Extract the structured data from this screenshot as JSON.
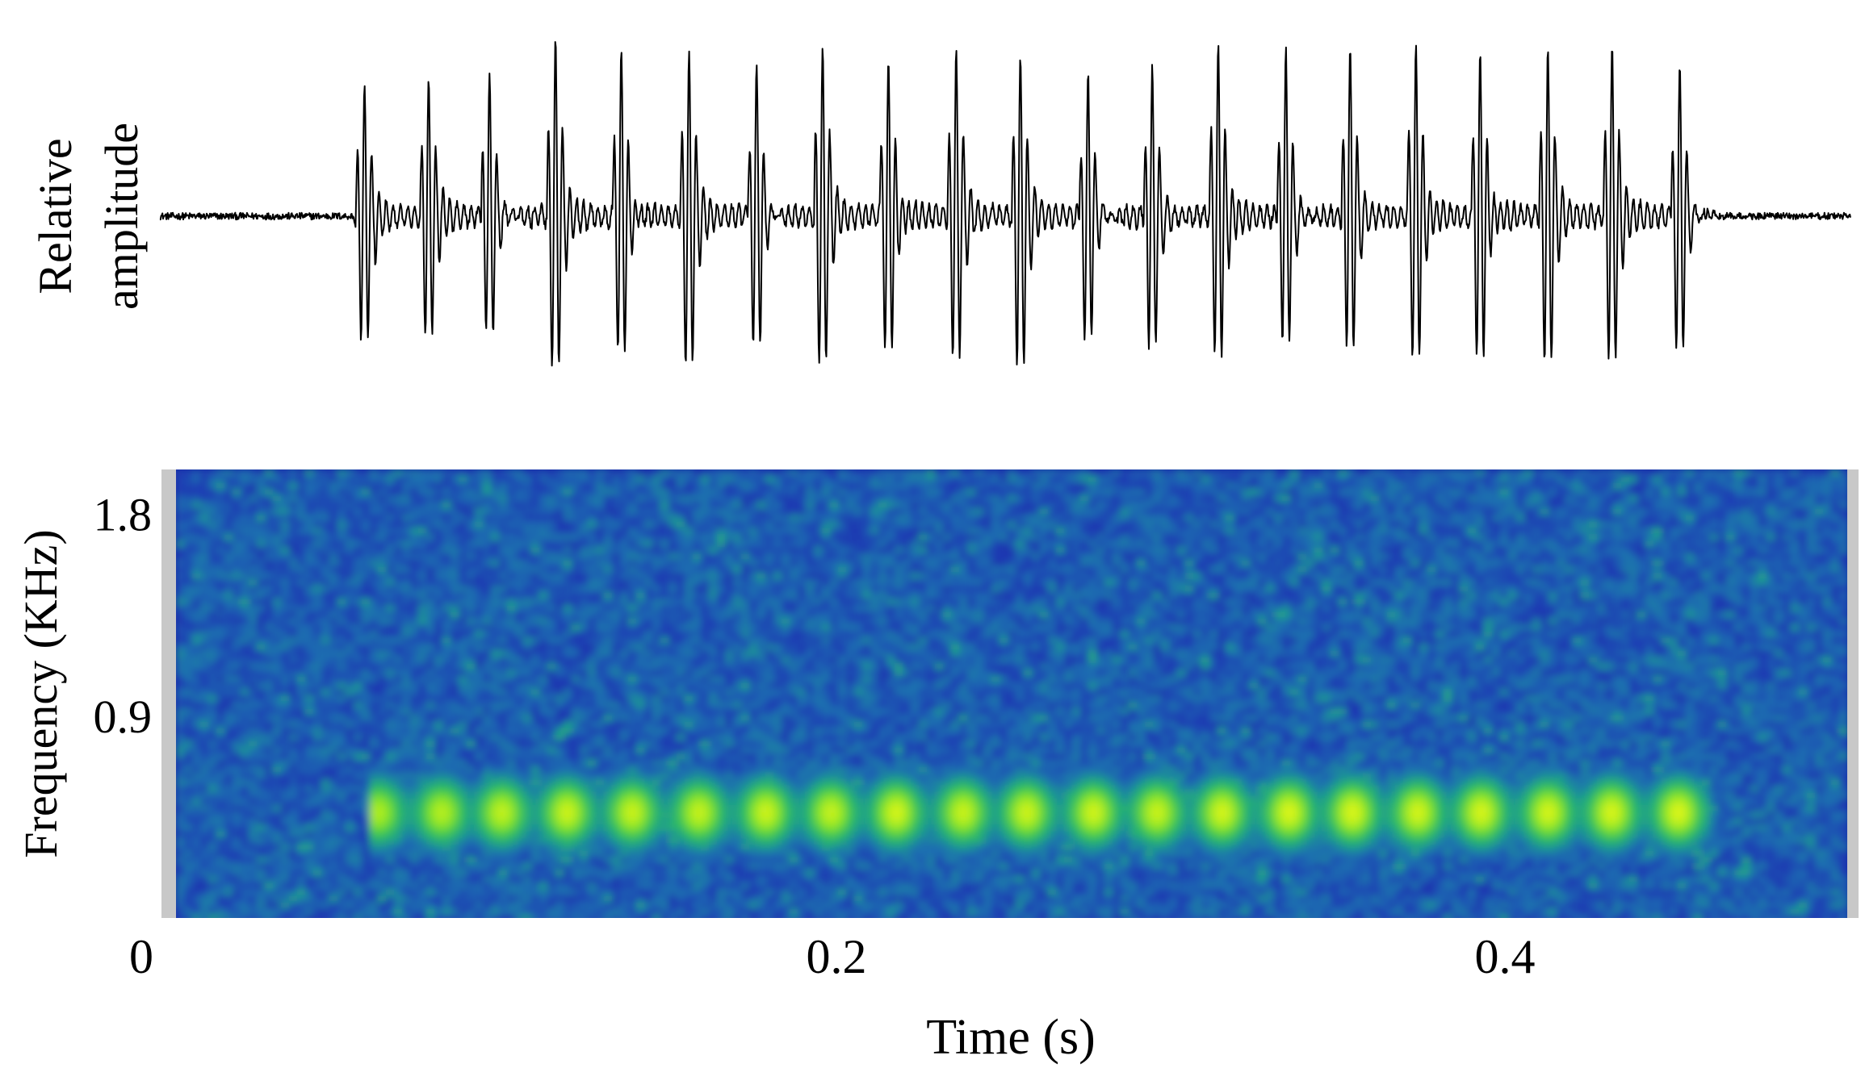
{
  "chart_data": [
    {
      "type": "line",
      "panel": "waveform",
      "ylabel_lines": [
        "Relative",
        "amplitude"
      ],
      "xlim": [
        0,
        0.5
      ],
      "x_unit": "s",
      "ylim": [
        -1,
        1
      ],
      "line_color": "#000000",
      "background_noise_level": 0.02,
      "pulses": [
        {
          "t": 0.0605,
          "amplitude": 0.78,
          "peak": 0.72,
          "trough": -0.82
        },
        {
          "t": 0.0795,
          "amplitude": 0.77,
          "peak": 0.73,
          "trough": -0.77
        },
        {
          "t": 0.0975,
          "amplitude": 0.88,
          "peak": 0.88,
          "trough": -0.87
        },
        {
          "t": 0.117,
          "amplitude": 0.97,
          "peak": 0.97,
          "trough": -0.97
        },
        {
          "t": 0.1365,
          "amplitude": 1.0,
          "peak": 1.0,
          "trough": -0.97
        },
        {
          "t": 0.1565,
          "amplitude": 0.91,
          "peak": 0.91,
          "trough": -0.97
        },
        {
          "t": 0.1765,
          "amplitude": 0.93,
          "peak": 0.94,
          "trough": -0.97
        },
        {
          "t": 0.196,
          "amplitude": 0.95,
          "peak": 0.95,
          "trough": -0.97
        },
        {
          "t": 0.2155,
          "amplitude": 0.92,
          "peak": 0.91,
          "trough": -0.92
        },
        {
          "t": 0.2355,
          "amplitude": 0.94,
          "peak": 0.95,
          "trough": -0.95
        },
        {
          "t": 0.2545,
          "amplitude": 0.87,
          "peak": 0.86,
          "trough": -0.97
        },
        {
          "t": 0.2745,
          "amplitude": 0.88,
          "peak": 0.88,
          "trough": -0.91
        },
        {
          "t": 0.2935,
          "amplitude": 0.9,
          "peak": 0.9,
          "trough": -0.92
        },
        {
          "t": 0.313,
          "amplitude": 0.93,
          "peak": 0.94,
          "trough": -0.9
        },
        {
          "t": 0.333,
          "amplitude": 1.0,
          "peak": 1.0,
          "trough": -0.9
        },
        {
          "t": 0.352,
          "amplitude": 0.96,
          "peak": 0.96,
          "trough": -0.91
        },
        {
          "t": 0.3715,
          "amplitude": 0.94,
          "peak": 0.94,
          "trough": -0.92
        },
        {
          "t": 0.3905,
          "amplitude": 0.95,
          "peak": 0.95,
          "trough": -0.97
        },
        {
          "t": 0.4105,
          "amplitude": 0.93,
          "peak": 0.93,
          "trough": -0.97
        },
        {
          "t": 0.4295,
          "amplitude": 0.95,
          "peak": 0.94,
          "trough": -0.92
        },
        {
          "t": 0.4495,
          "amplitude": 0.96,
          "peak": 0.95,
          "trough": -1.0
        }
      ]
    },
    {
      "type": "heatmap",
      "panel": "spectrogram",
      "xlabel": "Time (s)",
      "ylabel": "Frequency (KHz)",
      "xlim": [
        0,
        0.5
      ],
      "ylim": [
        0,
        2.0
      ],
      "xticks": [
        {
          "value": 0,
          "label": "0"
        },
        {
          "value": 0.2,
          "label": "0.2"
        },
        {
          "value": 0.4,
          "label": "0.4"
        }
      ],
      "yticks": [
        {
          "value": 0.9,
          "label": "0.9"
        },
        {
          "value": 1.8,
          "label": "1.8"
        }
      ],
      "colormap": [
        "#1a1fa0",
        "#1a3cb4",
        "#1e70b0",
        "#1fa08a",
        "#2fbf5c",
        "#7fe22a",
        "#d7f51c"
      ],
      "band_center_khz": 0.47,
      "band_half_width_khz": 0.2,
      "band_time_range": [
        0.0585,
        0.46
      ],
      "pulse_times": [
        0.0605,
        0.0795,
        0.0975,
        0.117,
        0.1365,
        0.1565,
        0.1765,
        0.196,
        0.2155,
        0.2355,
        0.2545,
        0.2745,
        0.2935,
        0.313,
        0.333,
        0.352,
        0.3715,
        0.3905,
        0.4105,
        0.4295,
        0.4495
      ],
      "peak_intensity": [
        0.78,
        0.8,
        0.83,
        0.86,
        0.85,
        0.84,
        0.86,
        0.84,
        0.88,
        0.85,
        0.86,
        0.87,
        0.85,
        0.88,
        0.9,
        0.9,
        0.88,
        0.89,
        0.88,
        0.89,
        0.9
      ]
    }
  ]
}
